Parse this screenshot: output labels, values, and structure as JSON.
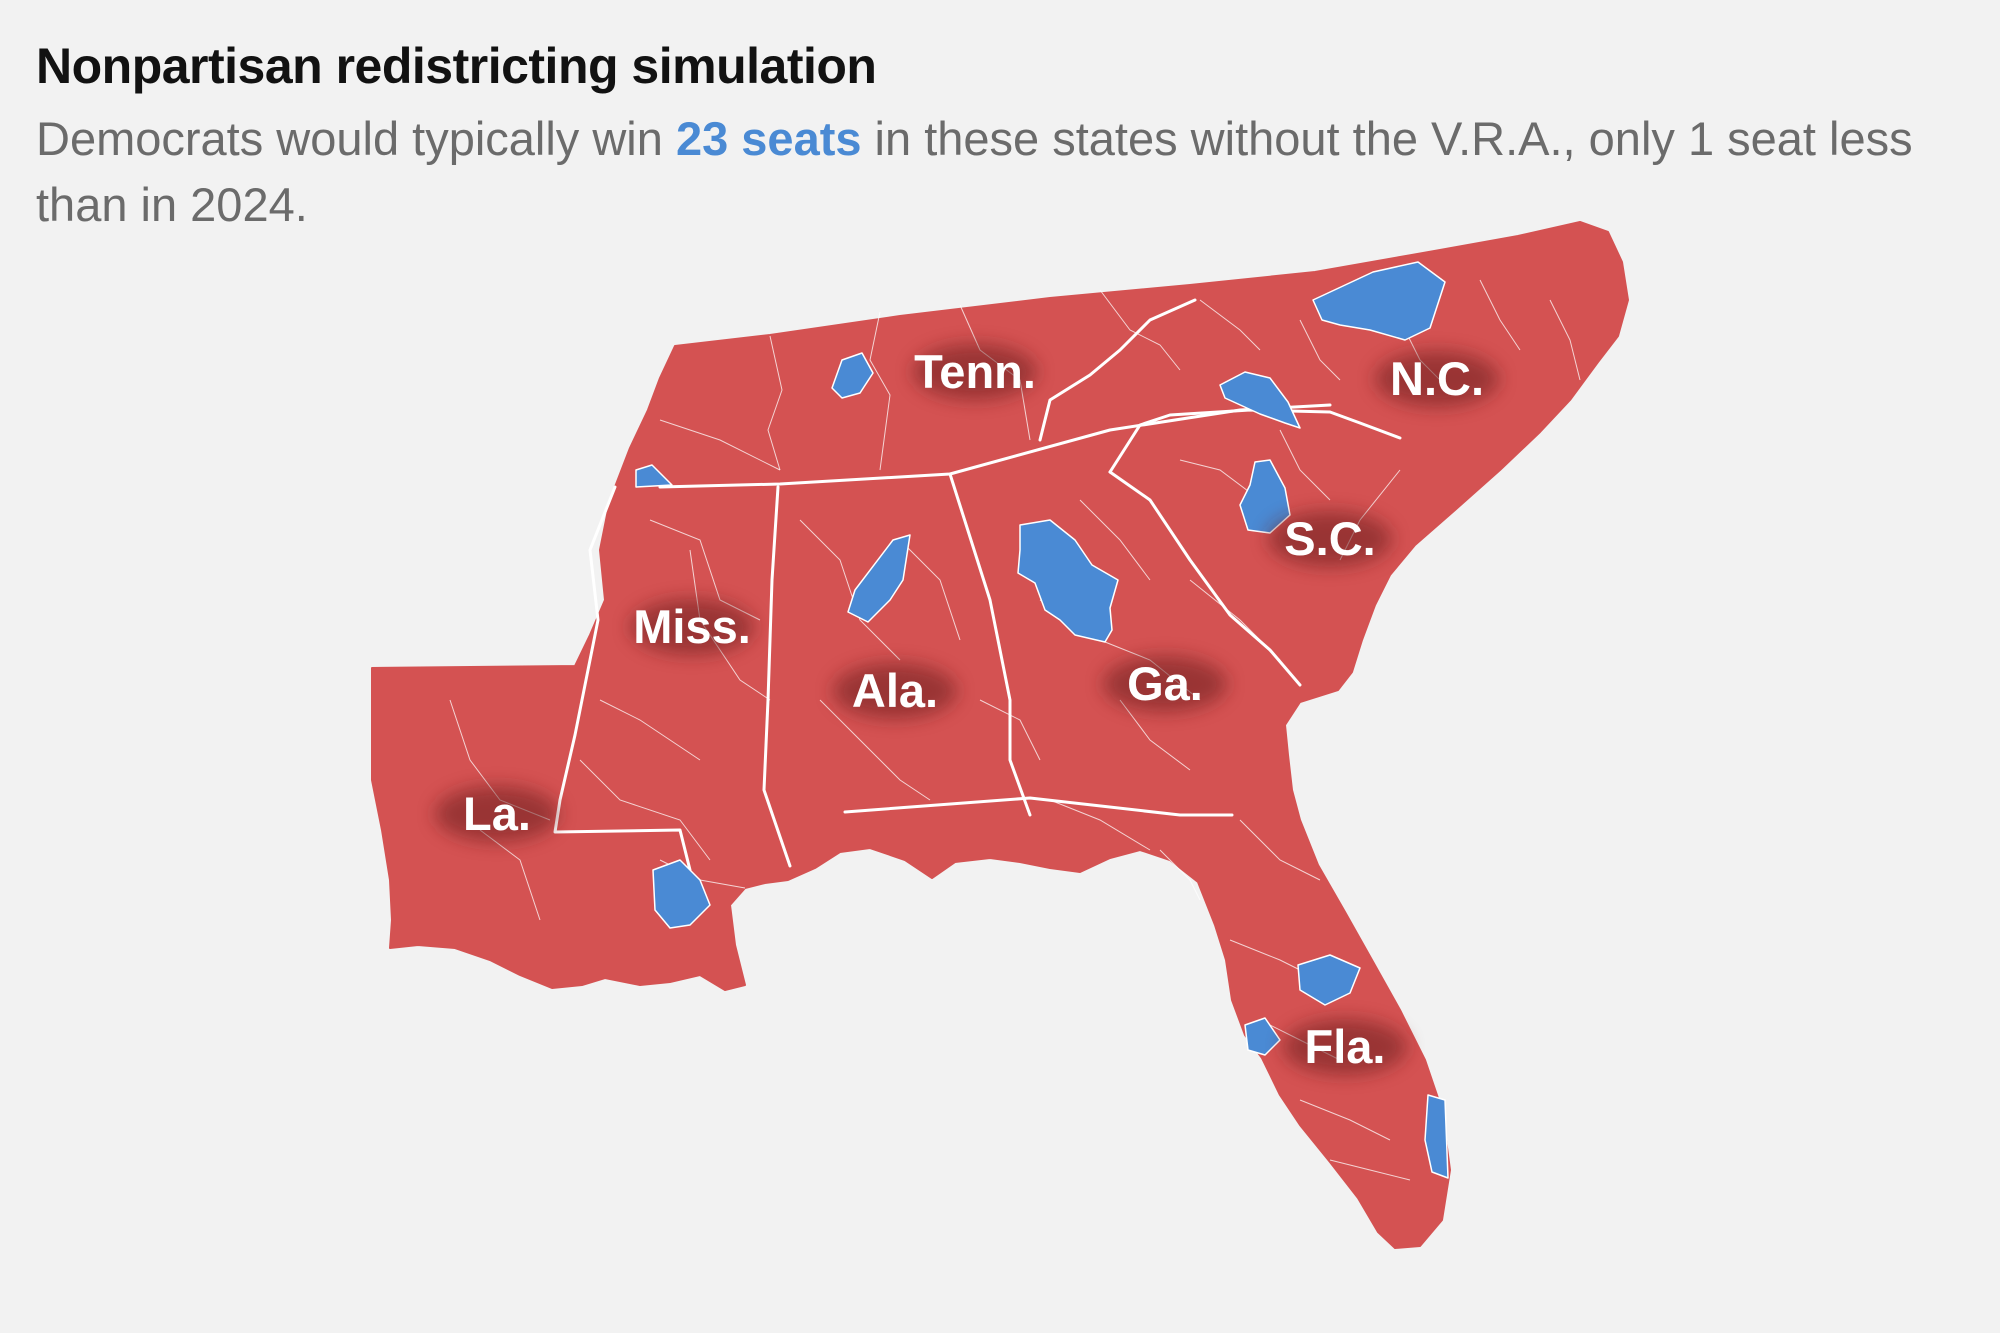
{
  "header": {
    "title": "Nonpartisan redistricting simulation",
    "subtitle_pre": "Democrats would typically win ",
    "subtitle_highlight": "23 seats",
    "subtitle_post": " in these states without the V.R.A., only 1 seat less than in 2024."
  },
  "colors": {
    "background": "#f2f2f2",
    "republican": "#d45252",
    "democratic": "#4a8ad4",
    "border": "#ffffff"
  },
  "states": [
    {
      "id": "tn",
      "label": "Tenn."
    },
    {
      "id": "nc",
      "label": "N.C."
    },
    {
      "id": "sc",
      "label": "S.C."
    },
    {
      "id": "ms",
      "label": "Miss."
    },
    {
      "id": "al",
      "label": "Ala."
    },
    {
      "id": "ga",
      "label": "Ga."
    },
    {
      "id": "la",
      "label": "La."
    },
    {
      "id": "fl",
      "label": "Fla."
    }
  ]
}
